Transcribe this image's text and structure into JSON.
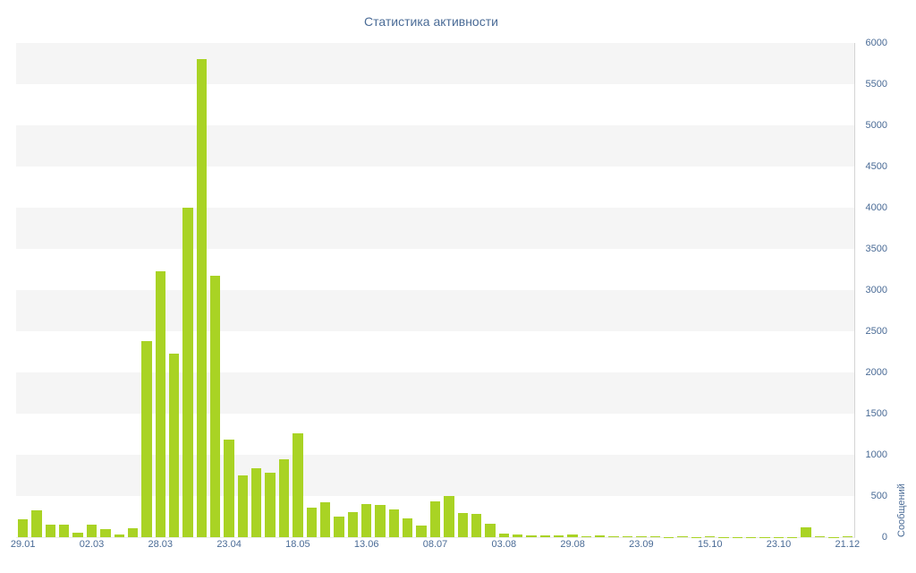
{
  "title": "Статистика активности",
  "colors": {
    "bar": "#a9d324",
    "text": "#4a6b96",
    "stripe": "#f5f5f5",
    "axis_line": "#d4d4d4"
  },
  "chart_data": {
    "type": "bar",
    "title": "Статистика активности",
    "xlabel": "",
    "ylabel": "Сообщений",
    "ylim": [
      0,
      6000
    ],
    "ytick_step": 500,
    "grid": "striped-bands",
    "legend": "none",
    "x_tick_labels": [
      "29.01",
      "02.03",
      "28.03",
      "23.04",
      "18.05",
      "13.06",
      "08.07",
      "03.08",
      "29.08",
      "23.09",
      "15.10",
      "23.10",
      "21.12"
    ],
    "x_tick_every_n_bars": 5,
    "values": [
      220,
      330,
      155,
      150,
      50,
      150,
      95,
      35,
      110,
      2380,
      3230,
      2230,
      4000,
      5800,
      3170,
      1190,
      750,
      840,
      780,
      950,
      1260,
      355,
      420,
      250,
      305,
      400,
      390,
      335,
      230,
      145,
      440,
      505,
      295,
      280,
      160,
      40,
      30,
      25,
      20,
      25,
      35,
      15,
      20,
      10,
      15,
      10,
      10,
      5,
      10,
      5,
      10,
      5,
      5,
      5,
      5,
      5,
      5,
      120,
      10,
      5,
      10
    ]
  }
}
